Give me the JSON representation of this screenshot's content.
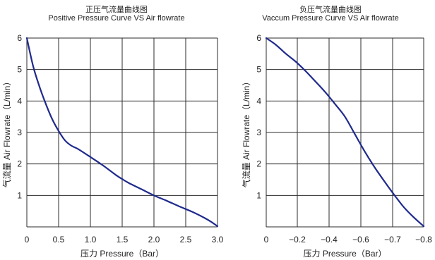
{
  "chart_data": [
    {
      "type": "line",
      "title": "正压气流量曲线图",
      "subtitle": "Positive Pressure Curve VS Air flowrate",
      "xlabel": "压力 Pressure（Bar）",
      "ylabel": "气流量 Air Flowrate（L/min）",
      "xlim": [
        0,
        3.0
      ],
      "ylim": [
        0,
        6
      ],
      "x_ticks": [
        "0",
        "0.5",
        "1.0",
        "1.5",
        "2.0",
        "2.5",
        "3.0"
      ],
      "y_ticks": [
        "1",
        "2",
        "3",
        "4",
        "5",
        "6"
      ],
      "grid": true,
      "series_color": "#1f2a8c",
      "series": [
        {
          "x": [
            0,
            0.1,
            0.2,
            0.3,
            0.4,
            0.5,
            0.6,
            0.7,
            0.8,
            1.0,
            1.2,
            1.4,
            1.5,
            1.6,
            1.8,
            2.0,
            2.2,
            2.4,
            2.6,
            2.8,
            2.9,
            3.0
          ],
          "y": [
            6.0,
            5.1,
            4.45,
            3.9,
            3.42,
            3.05,
            2.75,
            2.58,
            2.48,
            2.22,
            1.95,
            1.65,
            1.52,
            1.4,
            1.2,
            1.0,
            0.83,
            0.65,
            0.48,
            0.28,
            0.16,
            0.02
          ]
        }
      ]
    },
    {
      "type": "line",
      "title": "负压气流量曲线图",
      "subtitle": "Vaccum Pressure Curve VS Air flowrate",
      "xlabel": "压力 Pressure（Bar）",
      "ylabel": "气流量 Air Flowrate（L/min）",
      "xlim": [
        0,
        -0.8
      ],
      "ylim": [
        0,
        6
      ],
      "x_ticks": [
        "0",
        "−0.2",
        "−0.4",
        "−0.6",
        "−0.7",
        "−0.8"
      ],
      "y_ticks": [
        "1",
        "2",
        "3",
        "4",
        "5",
        "6"
      ],
      "grid": true,
      "series_color": "#1f2a8c",
      "series": [
        {
          "x": [
            0,
            -0.05,
            -0.1,
            -0.15,
            -0.2,
            -0.25,
            -0.3,
            -0.35,
            -0.4,
            -0.45,
            -0.5,
            -0.55,
            -0.6,
            -0.65,
            -0.7,
            -0.75,
            -0.8
          ],
          "y": [
            6.0,
            5.78,
            5.5,
            5.25,
            4.95,
            4.62,
            4.28,
            3.9,
            3.5,
            2.95,
            2.4,
            1.9,
            1.45,
            1.02,
            0.62,
            0.3,
            0.02
          ]
        }
      ]
    }
  ]
}
